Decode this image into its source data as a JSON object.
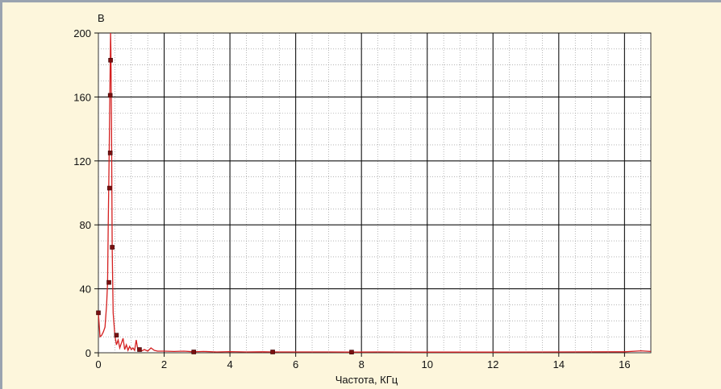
{
  "chart_data": {
    "type": "line",
    "title": "",
    "xlabel": "Частота, КГц",
    "ylabel": "В",
    "xlim": [
      0,
      16.8
    ],
    "ylim": [
      0,
      200
    ],
    "x_ticks": [
      0,
      2,
      4,
      6,
      8,
      10,
      12,
      14,
      16
    ],
    "y_ticks": [
      0,
      40,
      80,
      120,
      160,
      200
    ],
    "grid": true,
    "line_color": "#d42020",
    "marker_color": "#7a1010",
    "series": [
      {
        "x": [
          0,
          0.05,
          0.1,
          0.15,
          0.2,
          0.25,
          0.28,
          0.3,
          0.33,
          0.35,
          0.37,
          0.38,
          0.4,
          0.42,
          0.45,
          0.5,
          0.55,
          0.6,
          0.65,
          0.7,
          0.75,
          0.8,
          0.85,
          0.9,
          0.95,
          1.0,
          1.05,
          1.1,
          1.15,
          1.2,
          1.3,
          1.4,
          1.5,
          1.6,
          1.7,
          1.8,
          2.0,
          2.3,
          2.6,
          2.9,
          3.2,
          3.6,
          4.0,
          4.5,
          5.0,
          5.3,
          6.0,
          7.0,
          7.7,
          8.5,
          10,
          12,
          14,
          16,
          16.5,
          16.8
        ],
        "y": [
          25,
          10,
          11,
          13,
          16,
          30,
          44,
          80,
          130,
          165,
          200,
          190,
          140,
          66,
          25,
          11,
          5,
          8,
          3,
          6,
          9,
          2,
          5,
          1.5,
          4,
          2,
          3,
          1.5,
          8,
          2,
          1,
          2,
          1,
          3,
          1.5,
          1,
          1,
          0.8,
          1,
          0.6,
          0.8,
          0.5,
          0.7,
          0.5,
          0.6,
          0.5,
          0.5,
          0.5,
          0.4,
          0.5,
          0.4,
          0.4,
          0.5,
          0.6,
          1.2,
          0.8
        ]
      }
    ],
    "markers": [
      {
        "x": 0.0,
        "y": 25
      },
      {
        "x": 0.32,
        "y": 44
      },
      {
        "x": 0.34,
        "y": 103
      },
      {
        "x": 0.36,
        "y": 125
      },
      {
        "x": 0.36,
        "y": 161
      },
      {
        "x": 0.37,
        "y": 183
      },
      {
        "x": 0.42,
        "y": 66
      },
      {
        "x": 0.55,
        "y": 11
      },
      {
        "x": 1.25,
        "y": 2
      },
      {
        "x": 2.9,
        "y": 0.5
      },
      {
        "x": 5.3,
        "y": 0.5
      },
      {
        "x": 7.7,
        "y": 0.4
      }
    ]
  }
}
